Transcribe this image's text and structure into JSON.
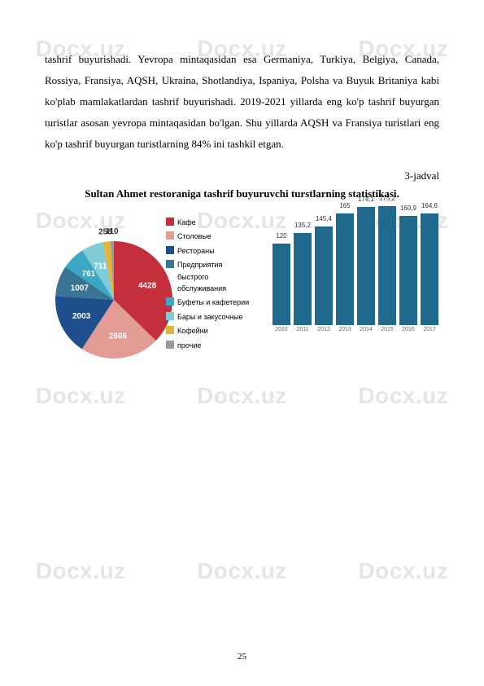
{
  "watermark": "Docx.uz",
  "paragraph": "tashrif buyurishadi. Yevropa mintaqasidan esa    Germaniya, Turkiya, Belgiya, Canada, Rossiya, Fransiya, AQSH, Ukraina, Shotlandiya, Ispaniya, Polsha va Buyuk Britaniya kabi ko'plab mamlakatlardan tashrif buyurishadi. 2019-2021 yillarda eng ko'p tashrif buyurgan turistlar asosan yevropa mintaqasidan bo'lgan. Shu yillarda AQSH va Fransiya turistlari eng ko'p tashrif buyurgan turistlarning 84% ini tashkil etgan.",
  "table_label": "3-jadval",
  "chart_title": "Sultan Ahmet restoraniga tashrif buyuruvchi turstlarning statistikasi.",
  "pie": {
    "slices": [
      {
        "label": "4428",
        "value": 4428,
        "color": "#c32f3a"
      },
      {
        "label": "2606",
        "value": 2606,
        "color": "#e29b95"
      },
      {
        "label": "2003",
        "value": 2003,
        "color": "#1f4e8c"
      },
      {
        "label": "1007",
        "value": 1007,
        "color": "#3a7494"
      },
      {
        "label": "761",
        "value": 761,
        "color": "#3aa7c4"
      },
      {
        "label": "711",
        "value": 711,
        "color": "#7fccd8"
      },
      {
        "label": "258",
        "value": 258,
        "color": "#e0b63a"
      },
      {
        "label": "110",
        "value": 110,
        "color": "#9a9a9a"
      }
    ],
    "legend": [
      {
        "text": "Кафе",
        "color": "#c32f3a"
      },
      {
        "text": "Столовые",
        "color": "#e29b95"
      },
      {
        "text": "Рестораны",
        "color": "#1f4e8c"
      },
      {
        "text": "Предприятия быстрого обслуживания",
        "color": "#3a7494"
      },
      {
        "text": "Буфеты и кафетерии",
        "color": "#3aa7c4"
      },
      {
        "text": "Бары и закусочные",
        "color": "#7fccd8"
      },
      {
        "text": "Кофейни",
        "color": "#e0b63a"
      },
      {
        "text": "прочие",
        "color": "#9a9a9a"
      }
    ]
  },
  "bars": {
    "color": "#1f6a8c",
    "max": 180,
    "items": [
      {
        "year": "2010",
        "value": 120
      },
      {
        "year": "2011",
        "value": 135.2
      },
      {
        "year": "2012",
        "value": 145.4
      },
      {
        "year": "2013",
        "value": 165
      },
      {
        "year": "2014",
        "value": 174.1
      },
      {
        "year": "2015",
        "value": 175.2
      },
      {
        "year": "2016",
        "value": 160.9
      },
      {
        "year": "2017",
        "value": 164.6
      }
    ]
  },
  "page_number": "25"
}
